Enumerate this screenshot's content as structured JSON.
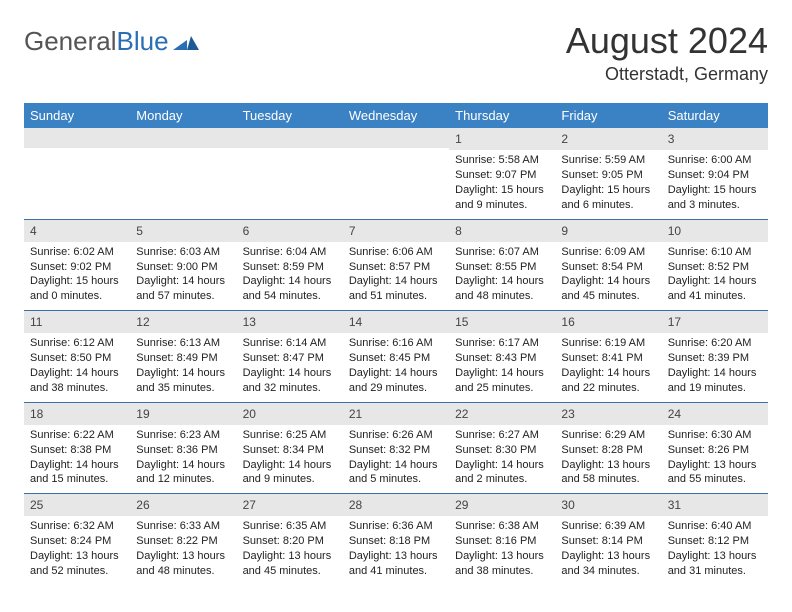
{
  "logo": {
    "text1": "General",
    "text2": "Blue"
  },
  "title": "August 2024",
  "location": "Otterstadt, Germany",
  "colors": {
    "header_bg": "#3a82c4",
    "header_text": "#ffffff",
    "daynum_bg": "#e7e7e7",
    "week_border": "#3a6fa8",
    "logo_gray": "#555555",
    "logo_blue": "#2a6fb5"
  },
  "dayHeaders": [
    "Sunday",
    "Monday",
    "Tuesday",
    "Wednesday",
    "Thursday",
    "Friday",
    "Saturday"
  ],
  "weeks": [
    [
      {
        "n": "",
        "sr": "",
        "ss": "",
        "dl": ""
      },
      {
        "n": "",
        "sr": "",
        "ss": "",
        "dl": ""
      },
      {
        "n": "",
        "sr": "",
        "ss": "",
        "dl": ""
      },
      {
        "n": "",
        "sr": "",
        "ss": "",
        "dl": ""
      },
      {
        "n": "1",
        "sr": "Sunrise: 5:58 AM",
        "ss": "Sunset: 9:07 PM",
        "dl": "Daylight: 15 hours and 9 minutes."
      },
      {
        "n": "2",
        "sr": "Sunrise: 5:59 AM",
        "ss": "Sunset: 9:05 PM",
        "dl": "Daylight: 15 hours and 6 minutes."
      },
      {
        "n": "3",
        "sr": "Sunrise: 6:00 AM",
        "ss": "Sunset: 9:04 PM",
        "dl": "Daylight: 15 hours and 3 minutes."
      }
    ],
    [
      {
        "n": "4",
        "sr": "Sunrise: 6:02 AM",
        "ss": "Sunset: 9:02 PM",
        "dl": "Daylight: 15 hours and 0 minutes."
      },
      {
        "n": "5",
        "sr": "Sunrise: 6:03 AM",
        "ss": "Sunset: 9:00 PM",
        "dl": "Daylight: 14 hours and 57 minutes."
      },
      {
        "n": "6",
        "sr": "Sunrise: 6:04 AM",
        "ss": "Sunset: 8:59 PM",
        "dl": "Daylight: 14 hours and 54 minutes."
      },
      {
        "n": "7",
        "sr": "Sunrise: 6:06 AM",
        "ss": "Sunset: 8:57 PM",
        "dl": "Daylight: 14 hours and 51 minutes."
      },
      {
        "n": "8",
        "sr": "Sunrise: 6:07 AM",
        "ss": "Sunset: 8:55 PM",
        "dl": "Daylight: 14 hours and 48 minutes."
      },
      {
        "n": "9",
        "sr": "Sunrise: 6:09 AM",
        "ss": "Sunset: 8:54 PM",
        "dl": "Daylight: 14 hours and 45 minutes."
      },
      {
        "n": "10",
        "sr": "Sunrise: 6:10 AM",
        "ss": "Sunset: 8:52 PM",
        "dl": "Daylight: 14 hours and 41 minutes."
      }
    ],
    [
      {
        "n": "11",
        "sr": "Sunrise: 6:12 AM",
        "ss": "Sunset: 8:50 PM",
        "dl": "Daylight: 14 hours and 38 minutes."
      },
      {
        "n": "12",
        "sr": "Sunrise: 6:13 AM",
        "ss": "Sunset: 8:49 PM",
        "dl": "Daylight: 14 hours and 35 minutes."
      },
      {
        "n": "13",
        "sr": "Sunrise: 6:14 AM",
        "ss": "Sunset: 8:47 PM",
        "dl": "Daylight: 14 hours and 32 minutes."
      },
      {
        "n": "14",
        "sr": "Sunrise: 6:16 AM",
        "ss": "Sunset: 8:45 PM",
        "dl": "Daylight: 14 hours and 29 minutes."
      },
      {
        "n": "15",
        "sr": "Sunrise: 6:17 AM",
        "ss": "Sunset: 8:43 PM",
        "dl": "Daylight: 14 hours and 25 minutes."
      },
      {
        "n": "16",
        "sr": "Sunrise: 6:19 AM",
        "ss": "Sunset: 8:41 PM",
        "dl": "Daylight: 14 hours and 22 minutes."
      },
      {
        "n": "17",
        "sr": "Sunrise: 6:20 AM",
        "ss": "Sunset: 8:39 PM",
        "dl": "Daylight: 14 hours and 19 minutes."
      }
    ],
    [
      {
        "n": "18",
        "sr": "Sunrise: 6:22 AM",
        "ss": "Sunset: 8:38 PM",
        "dl": "Daylight: 14 hours and 15 minutes."
      },
      {
        "n": "19",
        "sr": "Sunrise: 6:23 AM",
        "ss": "Sunset: 8:36 PM",
        "dl": "Daylight: 14 hours and 12 minutes."
      },
      {
        "n": "20",
        "sr": "Sunrise: 6:25 AM",
        "ss": "Sunset: 8:34 PM",
        "dl": "Daylight: 14 hours and 9 minutes."
      },
      {
        "n": "21",
        "sr": "Sunrise: 6:26 AM",
        "ss": "Sunset: 8:32 PM",
        "dl": "Daylight: 14 hours and 5 minutes."
      },
      {
        "n": "22",
        "sr": "Sunrise: 6:27 AM",
        "ss": "Sunset: 8:30 PM",
        "dl": "Daylight: 14 hours and 2 minutes."
      },
      {
        "n": "23",
        "sr": "Sunrise: 6:29 AM",
        "ss": "Sunset: 8:28 PM",
        "dl": "Daylight: 13 hours and 58 minutes."
      },
      {
        "n": "24",
        "sr": "Sunrise: 6:30 AM",
        "ss": "Sunset: 8:26 PM",
        "dl": "Daylight: 13 hours and 55 minutes."
      }
    ],
    [
      {
        "n": "25",
        "sr": "Sunrise: 6:32 AM",
        "ss": "Sunset: 8:24 PM",
        "dl": "Daylight: 13 hours and 52 minutes."
      },
      {
        "n": "26",
        "sr": "Sunrise: 6:33 AM",
        "ss": "Sunset: 8:22 PM",
        "dl": "Daylight: 13 hours and 48 minutes."
      },
      {
        "n": "27",
        "sr": "Sunrise: 6:35 AM",
        "ss": "Sunset: 8:20 PM",
        "dl": "Daylight: 13 hours and 45 minutes."
      },
      {
        "n": "28",
        "sr": "Sunrise: 6:36 AM",
        "ss": "Sunset: 8:18 PM",
        "dl": "Daylight: 13 hours and 41 minutes."
      },
      {
        "n": "29",
        "sr": "Sunrise: 6:38 AM",
        "ss": "Sunset: 8:16 PM",
        "dl": "Daylight: 13 hours and 38 minutes."
      },
      {
        "n": "30",
        "sr": "Sunrise: 6:39 AM",
        "ss": "Sunset: 8:14 PM",
        "dl": "Daylight: 13 hours and 34 minutes."
      },
      {
        "n": "31",
        "sr": "Sunrise: 6:40 AM",
        "ss": "Sunset: 8:12 PM",
        "dl": "Daylight: 13 hours and 31 minutes."
      }
    ]
  ]
}
